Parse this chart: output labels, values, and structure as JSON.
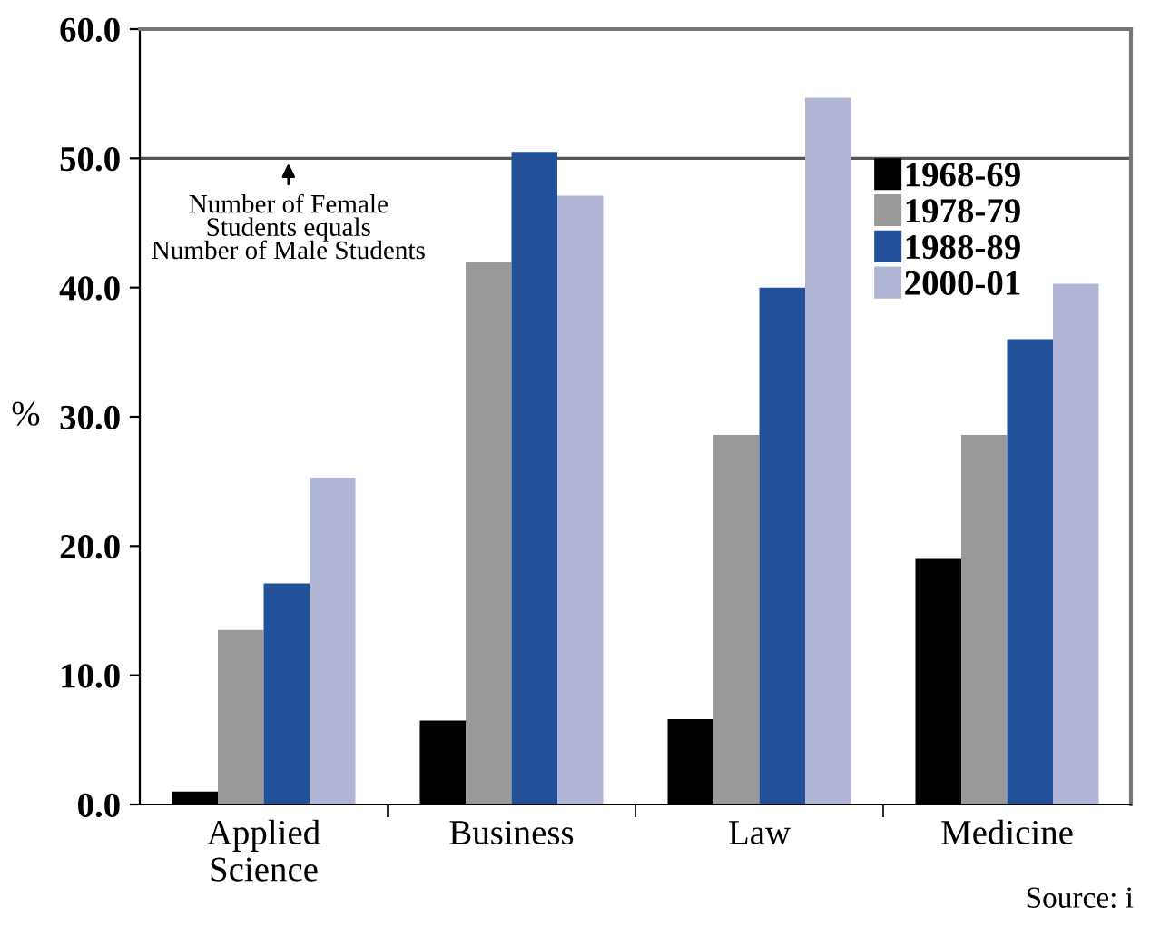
{
  "chart_data": {
    "type": "bar",
    "ylabel": "%",
    "categories": [
      "Applied\nScience",
      "Business",
      "Law",
      "Medicine"
    ],
    "series": [
      {
        "name": "1968-69",
        "color": "#000000",
        "values": [
          1.0,
          6.5,
          6.6,
          19.0
        ]
      },
      {
        "name": "1978-79",
        "color": "#999999",
        "values": [
          13.5,
          42.0,
          28.6,
          28.6
        ]
      },
      {
        "name": "1988-89",
        "color": "#235199",
        "values": [
          17.1,
          50.5,
          40.0,
          36.0
        ]
      },
      {
        "name": "2000-01",
        "color": "#b1b5d6",
        "values": [
          25.3,
          47.1,
          54.7,
          40.3
        ]
      }
    ],
    "ylim": [
      0,
      60
    ],
    "yticks": [
      {
        "value": 0,
        "label": "0.0"
      },
      {
        "value": 10,
        "label": "10.0"
      },
      {
        "value": 20,
        "label": "20.0"
      },
      {
        "value": 30,
        "label": "30.0"
      },
      {
        "value": 40,
        "label": "40.0"
      },
      {
        "value": 50,
        "label": "50.0"
      },
      {
        "value": 60,
        "label": "60.0"
      }
    ],
    "ref_lines": [
      {
        "axis": "y",
        "value": 50,
        "label": "Number of Female\nStudents equals\nNumber of Male Students",
        "color": "#555555"
      }
    ],
    "annotations": [
      "Source: i"
    ],
    "legend": "top right",
    "grid": false
  }
}
